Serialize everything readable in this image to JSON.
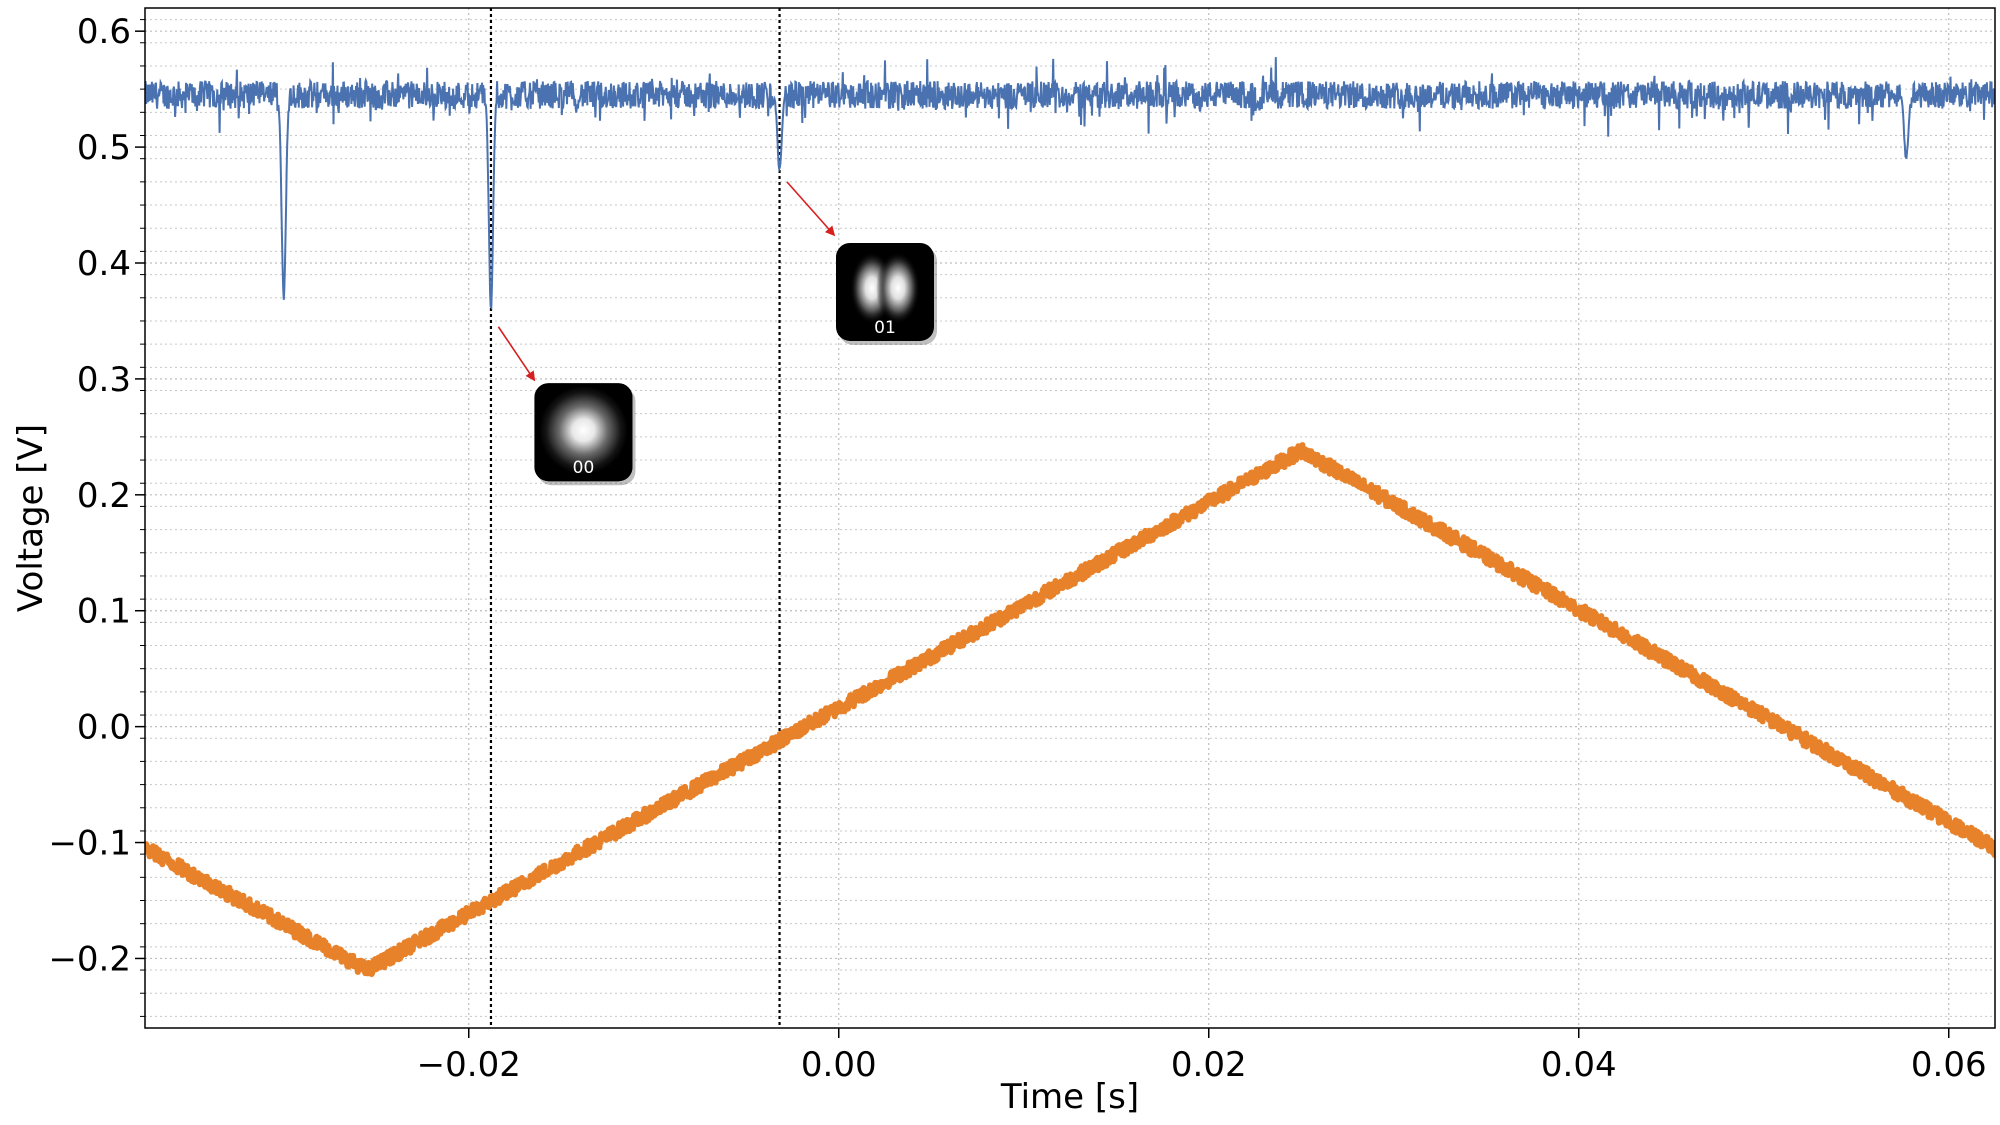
{
  "chart_data": {
    "type": "line",
    "xlabel": "Time [s]",
    "ylabel": "Voltage [V]",
    "xlim": [
      -0.0375,
      0.0625
    ],
    "ylim": [
      -0.26,
      0.62
    ],
    "x_ticks": [
      -0.02,
      0.0,
      0.02,
      0.04,
      0.06
    ],
    "x_tick_labels": [
      "−0.02",
      "0.00",
      "0.02",
      "0.04",
      "0.06"
    ],
    "y_ticks": [
      -0.2,
      -0.1,
      0.0,
      0.1,
      0.2,
      0.3,
      0.4,
      0.5,
      0.6
    ],
    "y_tick_labels": [
      "−0.2",
      "−0.1",
      "0.0",
      "0.1",
      "0.2",
      "0.3",
      "0.4",
      "0.5",
      "0.6"
    ],
    "grid": true,
    "colors": {
      "transmission": "#4a72b0",
      "ramp": "#e8822a",
      "arrow": "#d62020"
    },
    "series": [
      {
        "id": "transmission",
        "baseline": 0.545,
        "noise_amplitude": 0.012,
        "dips": [
          {
            "x": -0.03,
            "y": 0.37
          },
          {
            "x": -0.0188,
            "y": 0.36
          },
          {
            "x": -0.0032,
            "y": 0.48
          },
          {
            "x": 0.0577,
            "y": 0.49
          }
        ]
      },
      {
        "id": "ramp",
        "points": [
          [
            -0.0375,
            -0.105
          ],
          [
            -0.0255,
            -0.21
          ],
          [
            0.025,
            0.238
          ],
          [
            0.0625,
            -0.105
          ]
        ],
        "noise_amplitude": 0.006
      }
    ],
    "vlines": [
      -0.0188,
      -0.0032
    ],
    "annotations": [
      {
        "label": "00",
        "mode": "gaussian",
        "arrow_from": [
          -0.0184,
          0.345
        ],
        "arrow_to": [
          -0.0165,
          0.3
        ],
        "box_center": [
          -0.0138,
          0.254
        ]
      },
      {
        "label": "01",
        "mode": "hermite",
        "arrow_from": [
          -0.0028,
          0.47
        ],
        "arrow_to": [
          -0.0003,
          0.425
        ],
        "box_center": [
          0.0025,
          0.375
        ]
      }
    ]
  }
}
